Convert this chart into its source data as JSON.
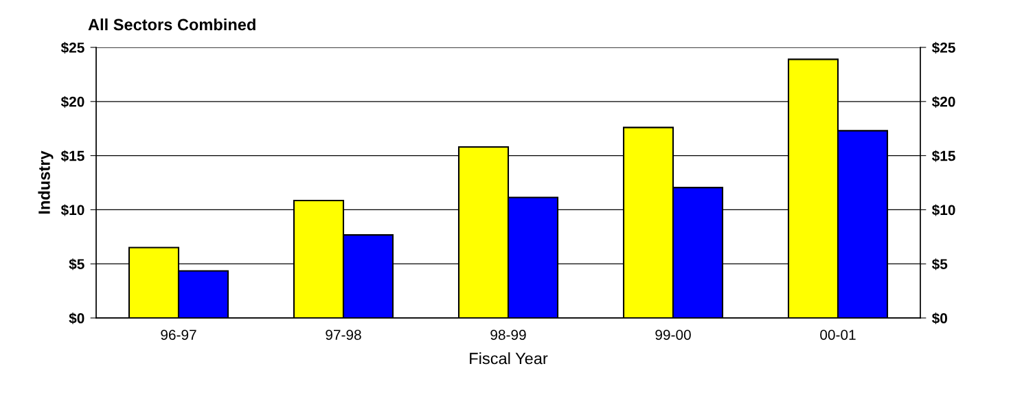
{
  "chart_data": {
    "type": "bar",
    "title": "All Sectors Combined",
    "xlabel": "Fiscal Year",
    "ylabel": "Industry",
    "categories": [
      "96-97",
      "97-98",
      "98-99",
      "99-00",
      "00-01"
    ],
    "series": [
      {
        "color": "#ffff00",
        "values": [
          6.5,
          10.85,
          15.8,
          17.6,
          23.9
        ]
      },
      {
        "color": "#0000ff",
        "values": [
          4.35,
          7.67,
          11.14,
          12.05,
          17.3
        ]
      }
    ],
    "ylim": [
      0,
      25
    ],
    "yticks": [
      {
        "value": 0,
        "label": "$0"
      },
      {
        "value": 5,
        "label": "$5"
      },
      {
        "value": 10,
        "label": "$10"
      },
      {
        "value": 15,
        "label": "$15"
      },
      {
        "value": 20,
        "label": "$20"
      },
      {
        "value": 25,
        "label": "$25"
      }
    ],
    "y2lim": [
      0,
      25
    ],
    "y2ticks": [
      {
        "value": 0,
        "label": "$0"
      },
      {
        "value": 5,
        "label": "$5"
      },
      {
        "value": 10,
        "label": "$10"
      },
      {
        "value": 15,
        "label": "$15"
      },
      {
        "value": 20,
        "label": "$20"
      },
      {
        "value": 25,
        "label": "$25"
      }
    ],
    "grid": "y",
    "legend": false
  }
}
